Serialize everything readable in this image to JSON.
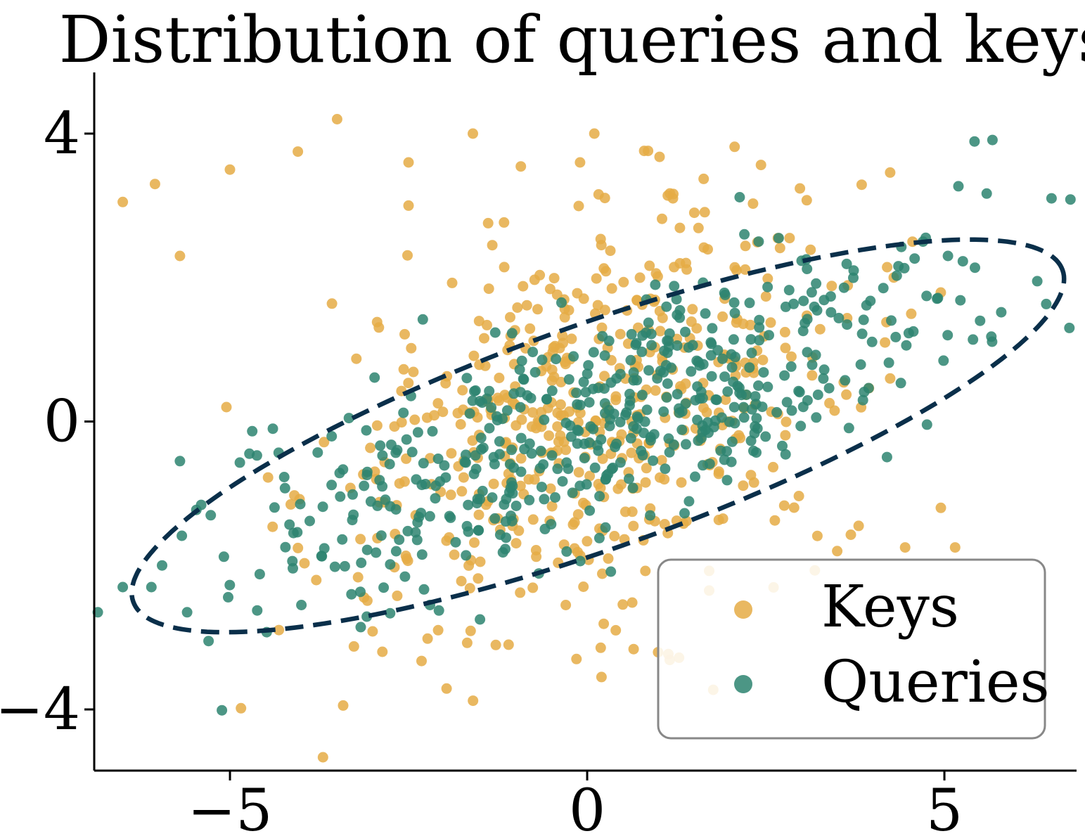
{
  "chart_data": {
    "type": "scatter",
    "title": "Distribution of queries and keys",
    "xlabel": "",
    "ylabel": "",
    "xlim": [
      -6.9,
      6.85
    ],
    "ylim": [
      -4.85,
      4.85
    ],
    "xticks": [
      {
        "value": -5,
        "label": "−5"
      },
      {
        "value": 0,
        "label": "0"
      },
      {
        "value": 5,
        "label": "5"
      }
    ],
    "yticks": [
      {
        "value": 4,
        "label": "4"
      },
      {
        "value": 0,
        "label": "0"
      },
      {
        "value": -4,
        "label": "−4"
      }
    ],
    "grid": false,
    "legend_position": "bottom-right",
    "series": [
      {
        "name": "Keys",
        "color": "#e5ab45",
        "cx": 0.1,
        "cy": 0.1,
        "stats": {
          "sd_x": 1.9,
          "sd_y": 1.45,
          "corr": 0.35,
          "n": 520
        },
        "notable_points": [
          {
            "x": -3.5,
            "y": 4.2
          },
          {
            "x": -6.5,
            "y": 3.05
          },
          {
            "x": -6.05,
            "y": 3.3
          },
          {
            "x": -5.0,
            "y": 3.5
          },
          {
            "x": -4.05,
            "y": 3.75
          },
          {
            "x": -2.5,
            "y": 3.6
          },
          {
            "x": -1.6,
            "y": 4.0
          },
          {
            "x": 0.1,
            "y": 4.0
          },
          {
            "x": -0.1,
            "y": 3.6
          },
          {
            "x": 1.2,
            "y": 3.1
          },
          {
            "x": 1.5,
            "y": 2.9
          },
          {
            "x": -2.5,
            "y": 3.0
          },
          {
            "x": -5.7,
            "y": 2.3
          },
          {
            "x": -5.05,
            "y": 0.2
          },
          {
            "x": 4.95,
            "y": -1.2
          },
          {
            "x": 5.15,
            "y": -1.75
          },
          {
            "x": 4.45,
            "y": -1.75
          },
          {
            "x": -1.1,
            "y": -3.1
          },
          {
            "x": -0.15,
            "y": -3.3
          },
          {
            "x": 0.2,
            "y": -3.55
          },
          {
            "x": 0.4,
            "y": -2.9
          },
          {
            "x": -0.3,
            "y": -2.55
          },
          {
            "x": 3.8,
            "y": -1.45
          },
          {
            "x": 3.5,
            "y": -1.8
          }
        ]
      },
      {
        "name": "Queries",
        "color": "#2d8470",
        "cx": 0.3,
        "cy": 0.0,
        "stats": {
          "sd_x": 2.5,
          "sd_y": 1.2,
          "corr": 0.72,
          "n": 520
        },
        "notable_points": [
          {
            "x": 6.5,
            "y": 3.1
          },
          {
            "x": 6.75,
            "y": 1.3
          },
          {
            "x": 6.3,
            "y": 1.95
          },
          {
            "x": 5.05,
            "y": 2.3
          },
          {
            "x": 4.7,
            "y": 2.5
          },
          {
            "x": 2.2,
            "y": 2.6
          },
          {
            "x": 2.4,
            "y": 2.5
          },
          {
            "x": 5.5,
            "y": 1.4
          },
          {
            "x": -6.85,
            "y": -2.65
          },
          {
            "x": -6.5,
            "y": -2.3
          },
          {
            "x": -6.1,
            "y": -2.3
          },
          {
            "x": -5.95,
            "y": -2.0
          },
          {
            "x": -5.6,
            "y": -2.65
          },
          {
            "x": -5.3,
            "y": -3.05
          },
          {
            "x": -5.7,
            "y": -0.55
          },
          {
            "x": -4.4,
            "y": -0.1
          },
          {
            "x": -1.5,
            "y": -2.75
          },
          {
            "x": -2.2,
            "y": -2.55
          },
          {
            "x": -4.0,
            "y": -2.55
          },
          {
            "x": -3.3,
            "y": -2.4
          }
        ]
      }
    ],
    "ellipse": {
      "center": [
        0.15,
        -0.2
      ],
      "semi_major": 6.9,
      "semi_minor": 1.55,
      "angle_deg": 19.5,
      "style": "dashed",
      "color": "#0a2f4a"
    },
    "legend": [
      {
        "label": "Keys",
        "color": "#e5ab45"
      },
      {
        "label": "Queries",
        "color": "#2d8470"
      }
    ]
  }
}
